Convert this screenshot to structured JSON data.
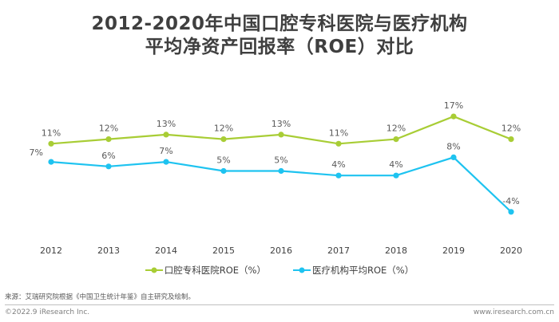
{
  "title_line1": "2012-2020年中国口腔专科医院与医疗机构",
  "title_line2": "平均净资产回报率（ROE）对比",
  "chart_data": {
    "type": "line",
    "categories": [
      "2012",
      "2013",
      "2014",
      "2015",
      "2016",
      "2017",
      "2018",
      "2019",
      "2020"
    ],
    "series": [
      {
        "name": "口腔专科医院ROE（%）",
        "color": "#a8cd35",
        "values": [
          11,
          12,
          13,
          12,
          13,
          11,
          12,
          17,
          12
        ],
        "labels": [
          "11%",
          "12%",
          "13%",
          "12%",
          "13%",
          "11%",
          "12%",
          "17%",
          "12%"
        ]
      },
      {
        "name": "医疗机构平均ROE（%）",
        "color": "#1ec3f0",
        "values": [
          7,
          6,
          7,
          5,
          5,
          4,
          4,
          8,
          -4
        ],
        "labels": [
          "7%",
          "6%",
          "7%",
          "5%",
          "5%",
          "4%",
          "4%",
          "8%",
          "-4%"
        ]
      }
    ],
    "grid": false,
    "legend": "bottom"
  },
  "source": "来源：艾瑞研究院根据《中国卫生统计年鉴》自主研究及绘制。",
  "footer_left": "©2022.9 iResearch Inc.",
  "footer_right": "www.iresearch.com.cn"
}
